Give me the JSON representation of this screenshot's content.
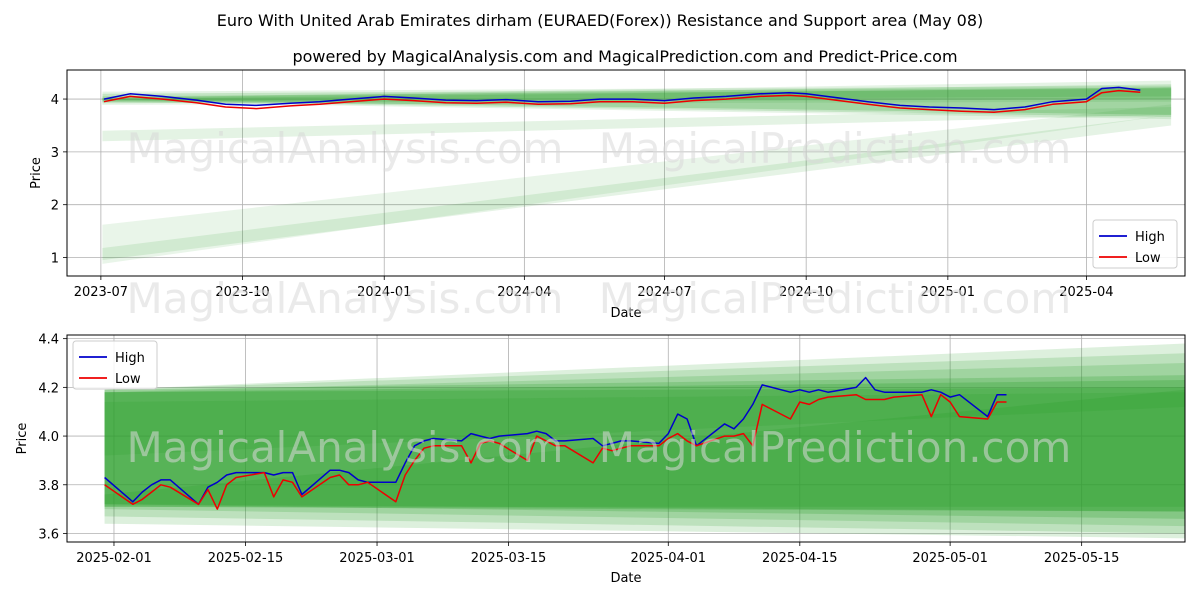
{
  "title": "Euro With United Arab Emirates dirham (EURAED(Forex)) Resistance and Support area (May 08)",
  "subtitle": "powered by MagicalAnalysis.com and MagicalPrediction.com and Predict-Price.com",
  "watermark_left": "MagicalAnalysis.com",
  "watermark_right": "MagicalPrediction.com",
  "colors": {
    "high": "#0000cc",
    "low": "#ee0000",
    "band": "#2ca02c",
    "grid": "#b0b0b0"
  },
  "chart_data": [
    {
      "type": "line",
      "xlabel": "Date",
      "ylabel": "Price",
      "xticks": [
        "2023-07",
        "2023-10",
        "2024-01",
        "2024-04",
        "2024-07",
        "2024-10",
        "2025-01",
        "2025-04"
      ],
      "yticks": [
        1,
        2,
        3,
        4
      ],
      "ylim": [
        0.65,
        4.55
      ],
      "xlim": [
        "2023-06-09",
        "2025-06-04"
      ],
      "legend": {
        "position": "bottom-right",
        "entries": [
          "High",
          "Low"
        ]
      },
      "grid": true,
      "series": [
        {
          "name": "High",
          "x": [
            "2023-07-03",
            "2023-07-20",
            "2023-08-10",
            "2023-09-01",
            "2023-09-20",
            "2023-10-10",
            "2023-11-01",
            "2023-11-20",
            "2023-12-10",
            "2024-01-01",
            "2024-01-20",
            "2024-02-10",
            "2024-03-01",
            "2024-03-20",
            "2024-04-10",
            "2024-05-01",
            "2024-05-20",
            "2024-06-10",
            "2024-07-01",
            "2024-07-20",
            "2024-08-10",
            "2024-09-01",
            "2024-09-20",
            "2024-10-01",
            "2024-10-20",
            "2024-11-10",
            "2024-12-01",
            "2024-12-20",
            "2025-01-10",
            "2025-01-31",
            "2025-02-20",
            "2025-03-10",
            "2025-04-01",
            "2025-04-11",
            "2025-04-22",
            "2025-05-06"
          ],
          "values": [
            4.0,
            4.1,
            4.05,
            3.98,
            3.9,
            3.88,
            3.92,
            3.95,
            4.0,
            4.05,
            4.02,
            3.98,
            3.97,
            3.99,
            3.95,
            3.96,
            4.0,
            4.0,
            3.97,
            4.02,
            4.05,
            4.1,
            4.12,
            4.1,
            4.03,
            3.95,
            3.88,
            3.85,
            3.83,
            3.8,
            3.85,
            3.95,
            4.0,
            4.2,
            4.22,
            4.17
          ]
        },
        {
          "name": "Low",
          "x": [
            "2023-07-03",
            "2023-07-20",
            "2023-08-10",
            "2023-09-01",
            "2023-09-20",
            "2023-10-10",
            "2023-11-01",
            "2023-11-20",
            "2023-12-10",
            "2024-01-01",
            "2024-01-20",
            "2024-02-10",
            "2024-03-01",
            "2024-03-20",
            "2024-04-10",
            "2024-05-01",
            "2024-05-20",
            "2024-06-10",
            "2024-07-01",
            "2024-07-20",
            "2024-08-10",
            "2024-09-01",
            "2024-09-20",
            "2024-10-01",
            "2024-10-20",
            "2024-11-10",
            "2024-12-01",
            "2024-12-20",
            "2025-01-10",
            "2025-01-31",
            "2025-02-20",
            "2025-03-10",
            "2025-04-01",
            "2025-04-11",
            "2025-04-22",
            "2025-05-06"
          ],
          "values": [
            3.95,
            4.05,
            4.0,
            3.93,
            3.85,
            3.82,
            3.87,
            3.9,
            3.95,
            4.0,
            3.97,
            3.93,
            3.92,
            3.94,
            3.9,
            3.91,
            3.95,
            3.95,
            3.92,
            3.97,
            4.0,
            4.05,
            4.07,
            4.05,
            3.98,
            3.9,
            3.83,
            3.8,
            3.77,
            3.75,
            3.8,
            3.9,
            3.95,
            4.12,
            4.16,
            4.13
          ]
        }
      ]
    },
    {
      "type": "line",
      "xlabel": "Date",
      "ylabel": "Price",
      "xticks": [
        "2025-02-01",
        "2025-02-15",
        "2025-03-01",
        "2025-03-15",
        "2025-04-01",
        "2025-04-15",
        "2025-05-01",
        "2025-05-15"
      ],
      "yticks": [
        "3.6",
        "3.8",
        "4.0",
        "4.2",
        "4.4"
      ],
      "ylim": [
        3.565,
        4.415
      ],
      "xlim": [
        "2025-01-27",
        "2025-05-26"
      ],
      "legend": {
        "position": "top-left",
        "entries": [
          "High",
          "Low"
        ]
      },
      "grid": true,
      "series": [
        {
          "name": "High",
          "x": [
            "2025-01-31",
            "2025-02-03",
            "2025-02-04",
            "2025-02-05",
            "2025-02-06",
            "2025-02-07",
            "2025-02-10",
            "2025-02-11",
            "2025-02-12",
            "2025-02-13",
            "2025-02-14",
            "2025-02-17",
            "2025-02-18",
            "2025-02-19",
            "2025-02-20",
            "2025-02-21",
            "2025-02-24",
            "2025-02-25",
            "2025-02-26",
            "2025-02-27",
            "2025-02-28",
            "2025-03-03",
            "2025-03-04",
            "2025-03-05",
            "2025-03-06",
            "2025-03-07",
            "2025-03-10",
            "2025-03-11",
            "2025-03-12",
            "2025-03-13",
            "2025-03-14",
            "2025-03-17",
            "2025-03-18",
            "2025-03-19",
            "2025-03-20",
            "2025-03-21",
            "2025-03-24",
            "2025-03-25",
            "2025-03-26",
            "2025-03-27",
            "2025-03-28",
            "2025-03-31",
            "2025-04-01",
            "2025-04-02",
            "2025-04-03",
            "2025-04-04",
            "2025-04-07",
            "2025-04-08",
            "2025-04-09",
            "2025-04-10",
            "2025-04-11",
            "2025-04-14",
            "2025-04-15",
            "2025-04-16",
            "2025-04-17",
            "2025-04-18",
            "2025-04-21",
            "2025-04-22",
            "2025-04-23",
            "2025-04-24",
            "2025-04-25",
            "2025-04-28",
            "2025-04-29",
            "2025-04-30",
            "2025-05-01",
            "2025-05-02",
            "2025-05-05",
            "2025-05-06",
            "2025-05-07"
          ],
          "values": [
            3.83,
            3.73,
            3.77,
            3.8,
            3.82,
            3.82,
            3.72,
            3.79,
            3.81,
            3.84,
            3.85,
            3.85,
            3.84,
            3.85,
            3.85,
            3.76,
            3.86,
            3.86,
            3.85,
            3.82,
            3.81,
            3.81,
            3.89,
            3.96,
            3.98,
            3.99,
            3.98,
            4.01,
            4.0,
            3.99,
            4.0,
            4.01,
            4.02,
            4.01,
            3.98,
            3.98,
            3.99,
            3.96,
            3.97,
            3.98,
            3.98,
            3.97,
            4.01,
            4.09,
            4.07,
            3.96,
            4.05,
            4.03,
            4.07,
            4.13,
            4.21,
            4.18,
            4.19,
            4.18,
            4.19,
            4.18,
            4.2,
            4.24,
            4.19,
            4.18,
            4.18,
            4.18,
            4.19,
            4.18,
            4.16,
            4.17,
            4.08,
            4.17,
            4.17
          ]
        },
        {
          "name": "Low",
          "x": [
            "2025-01-31",
            "2025-02-03",
            "2025-02-04",
            "2025-02-05",
            "2025-02-06",
            "2025-02-07",
            "2025-02-10",
            "2025-02-11",
            "2025-02-12",
            "2025-02-13",
            "2025-02-14",
            "2025-02-17",
            "2025-02-18",
            "2025-02-19",
            "2025-02-20",
            "2025-02-21",
            "2025-02-24",
            "2025-02-25",
            "2025-02-26",
            "2025-02-27",
            "2025-02-28",
            "2025-03-03",
            "2025-03-04",
            "2025-03-05",
            "2025-03-06",
            "2025-03-07",
            "2025-03-10",
            "2025-03-11",
            "2025-03-12",
            "2025-03-13",
            "2025-03-14",
            "2025-03-17",
            "2025-03-18",
            "2025-03-19",
            "2025-03-20",
            "2025-03-21",
            "2025-03-24",
            "2025-03-25",
            "2025-03-26",
            "2025-03-27",
            "2025-03-28",
            "2025-03-31",
            "2025-04-01",
            "2025-04-02",
            "2025-04-03",
            "2025-04-04",
            "2025-04-07",
            "2025-04-08",
            "2025-04-09",
            "2025-04-10",
            "2025-04-11",
            "2025-04-14",
            "2025-04-15",
            "2025-04-16",
            "2025-04-17",
            "2025-04-18",
            "2025-04-21",
            "2025-04-22",
            "2025-04-23",
            "2025-04-24",
            "2025-04-25",
            "2025-04-28",
            "2025-04-29",
            "2025-04-30",
            "2025-05-01",
            "2025-05-02",
            "2025-05-05",
            "2025-05-06",
            "2025-05-07"
          ],
          "values": [
            3.8,
            3.72,
            3.74,
            3.77,
            3.8,
            3.79,
            3.72,
            3.78,
            3.7,
            3.8,
            3.83,
            3.85,
            3.75,
            3.82,
            3.81,
            3.75,
            3.83,
            3.84,
            3.8,
            3.8,
            3.81,
            3.73,
            3.84,
            3.9,
            3.95,
            3.96,
            3.96,
            3.89,
            3.97,
            3.98,
            3.97,
            3.9,
            4.0,
            3.98,
            3.96,
            3.96,
            3.89,
            3.95,
            3.94,
            3.95,
            3.96,
            3.96,
            3.99,
            4.01,
            3.98,
            3.96,
            4.0,
            4.0,
            4.01,
            3.96,
            4.13,
            4.07,
            4.14,
            4.13,
            4.15,
            4.16,
            4.17,
            4.15,
            4.15,
            4.15,
            4.16,
            4.17,
            4.08,
            4.17,
            4.14,
            4.08,
            4.07,
            4.14,
            4.14
          ]
        }
      ]
    }
  ]
}
